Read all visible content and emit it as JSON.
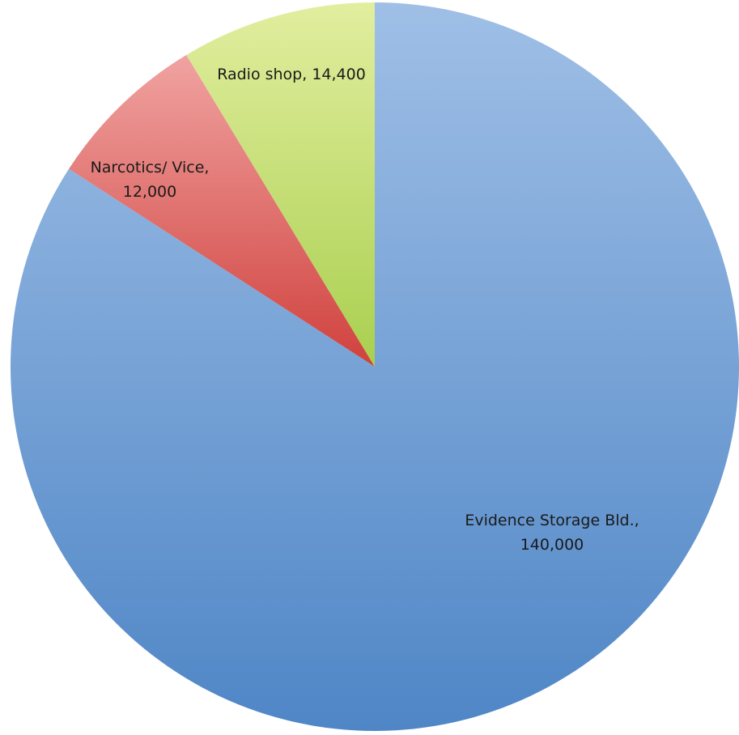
{
  "chart_data": {
    "type": "pie",
    "title": "",
    "start_angle_deg": 0,
    "direction": "clockwise",
    "legend": "none",
    "slices": [
      {
        "label_lines": [
          "Evidence Storage Bld.,",
          "140,000"
        ],
        "category": "Evidence Storage Bld.",
        "value": 140000,
        "color_top": "#9fbfe6",
        "color_bottom": "#4f86c6"
      },
      {
        "label_lines": [
          "Narcotics/ Vice,",
          "12,000"
        ],
        "category": "Narcotics/ Vice",
        "value": 12000,
        "color_top": "#f0a3a1",
        "color_bottom": "#d0413d"
      },
      {
        "label_lines": [
          "Radio shop, 14,400"
        ],
        "category": "Radio shop",
        "value": 14400,
        "color_top": "#e2ee9f",
        "color_bottom": "#a9cf4f"
      }
    ]
  }
}
